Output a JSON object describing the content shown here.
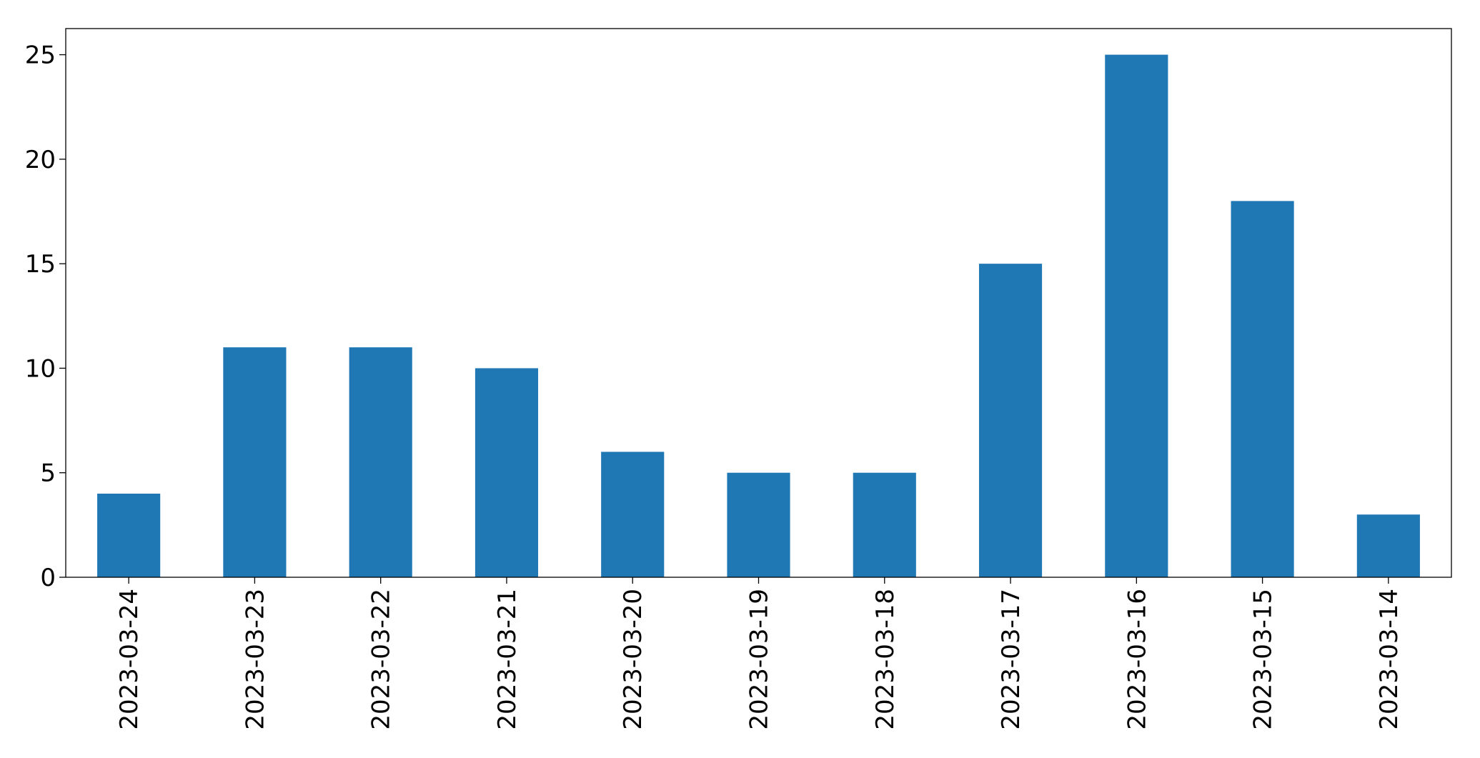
{
  "chart_data": {
    "type": "bar",
    "categories": [
      "2023-03-24",
      "2023-03-23",
      "2023-03-22",
      "2023-03-21",
      "2023-03-20",
      "2023-03-19",
      "2023-03-18",
      "2023-03-17",
      "2023-03-16",
      "2023-03-15",
      "2023-03-14"
    ],
    "values": [
      4,
      11,
      11,
      10,
      6,
      5,
      5,
      15,
      25,
      18,
      3
    ],
    "color": "#1f77b4",
    "ylim": [
      0,
      26.25
    ],
    "yticks": [
      0,
      5,
      10,
      15,
      20,
      25
    ],
    "grid": false
  }
}
